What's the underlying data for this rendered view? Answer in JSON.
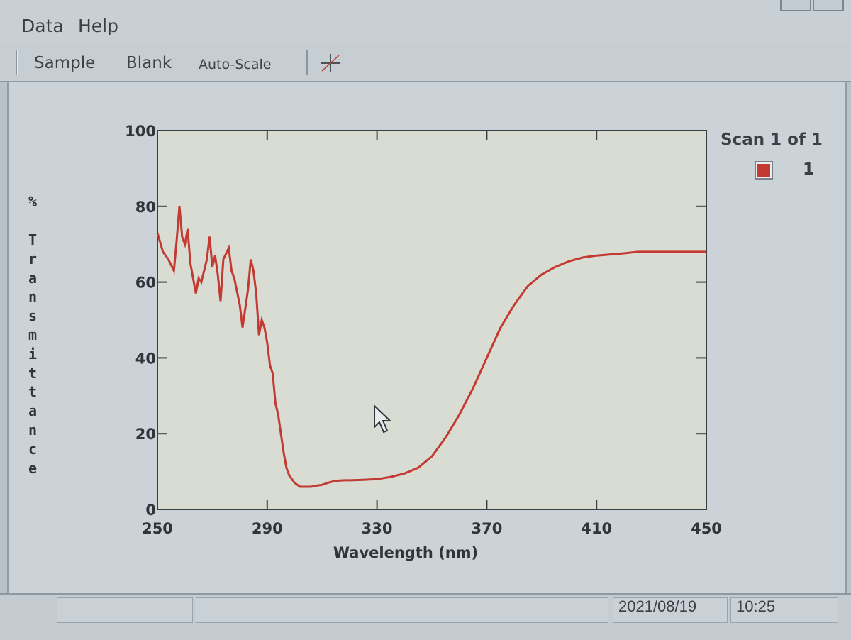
{
  "menubar": {
    "items": [
      {
        "label": "Data"
      },
      {
        "label": "Help"
      }
    ]
  },
  "toolbar": {
    "sample_label": "Sample",
    "blank_label": "Blank",
    "autoscale_label": "Auto-Scale",
    "crosshair_icon": "crosshair-icon"
  },
  "legend": {
    "title": "Scan 1 of 1",
    "entries": [
      {
        "label": "1",
        "color": "#c23a32"
      }
    ]
  },
  "statusbar": {
    "date": "2021/08/19",
    "time": "10:25"
  },
  "colors": {
    "series": "#c23a32",
    "plot_bg": "#d9dcd3"
  },
  "chart_data": {
    "type": "line",
    "xlabel": "Wavelength (nm)",
    "ylabel": "% Transmittance",
    "xlim": [
      250,
      450
    ],
    "ylim": [
      0,
      100
    ],
    "xticks": [
      250,
      290,
      330,
      370,
      410,
      450
    ],
    "yticks": [
      0,
      20,
      40,
      60,
      80,
      100
    ],
    "grid": false,
    "legend_position": "top-right",
    "series": [
      {
        "name": "1",
        "x": [
          250,
          252,
          254,
          256,
          257,
          258,
          259,
          260,
          261,
          262,
          264,
          265,
          266,
          268,
          269,
          270,
          271,
          272,
          273,
          274,
          276,
          277,
          278,
          280,
          281,
          283,
          284,
          285,
          286,
          287,
          288,
          289,
          290,
          291,
          292,
          293,
          294,
          295,
          296,
          297,
          298,
          299,
          300,
          302,
          304,
          306,
          308,
          310,
          312,
          314,
          316,
          318,
          320,
          325,
          330,
          335,
          340,
          345,
          350,
          355,
          360,
          365,
          370,
          375,
          380,
          385,
          390,
          395,
          400,
          405,
          410,
          415,
          420,
          425,
          430,
          435,
          440,
          445,
          450
        ],
        "y": [
          73,
          68,
          66,
          63,
          71,
          80,
          72,
          70,
          74,
          65,
          57,
          61,
          60,
          66,
          72,
          64,
          67,
          62,
          55,
          66,
          69,
          63,
          61,
          54,
          48,
          58,
          66,
          63,
          57,
          46,
          50,
          48,
          44,
          38,
          36,
          28,
          25,
          20,
          15,
          11,
          9,
          8,
          7,
          6,
          6,
          6,
          6.3,
          6.5,
          7,
          7.4,
          7.6,
          7.7,
          7.7,
          7.8,
          8,
          8.6,
          9.5,
          11,
          14,
          19,
          25,
          32,
          40,
          48,
          54,
          59,
          62,
          64,
          65.5,
          66.5,
          67,
          67.3,
          67.6,
          68,
          68,
          68,
          68,
          68,
          68
        ]
      }
    ]
  }
}
